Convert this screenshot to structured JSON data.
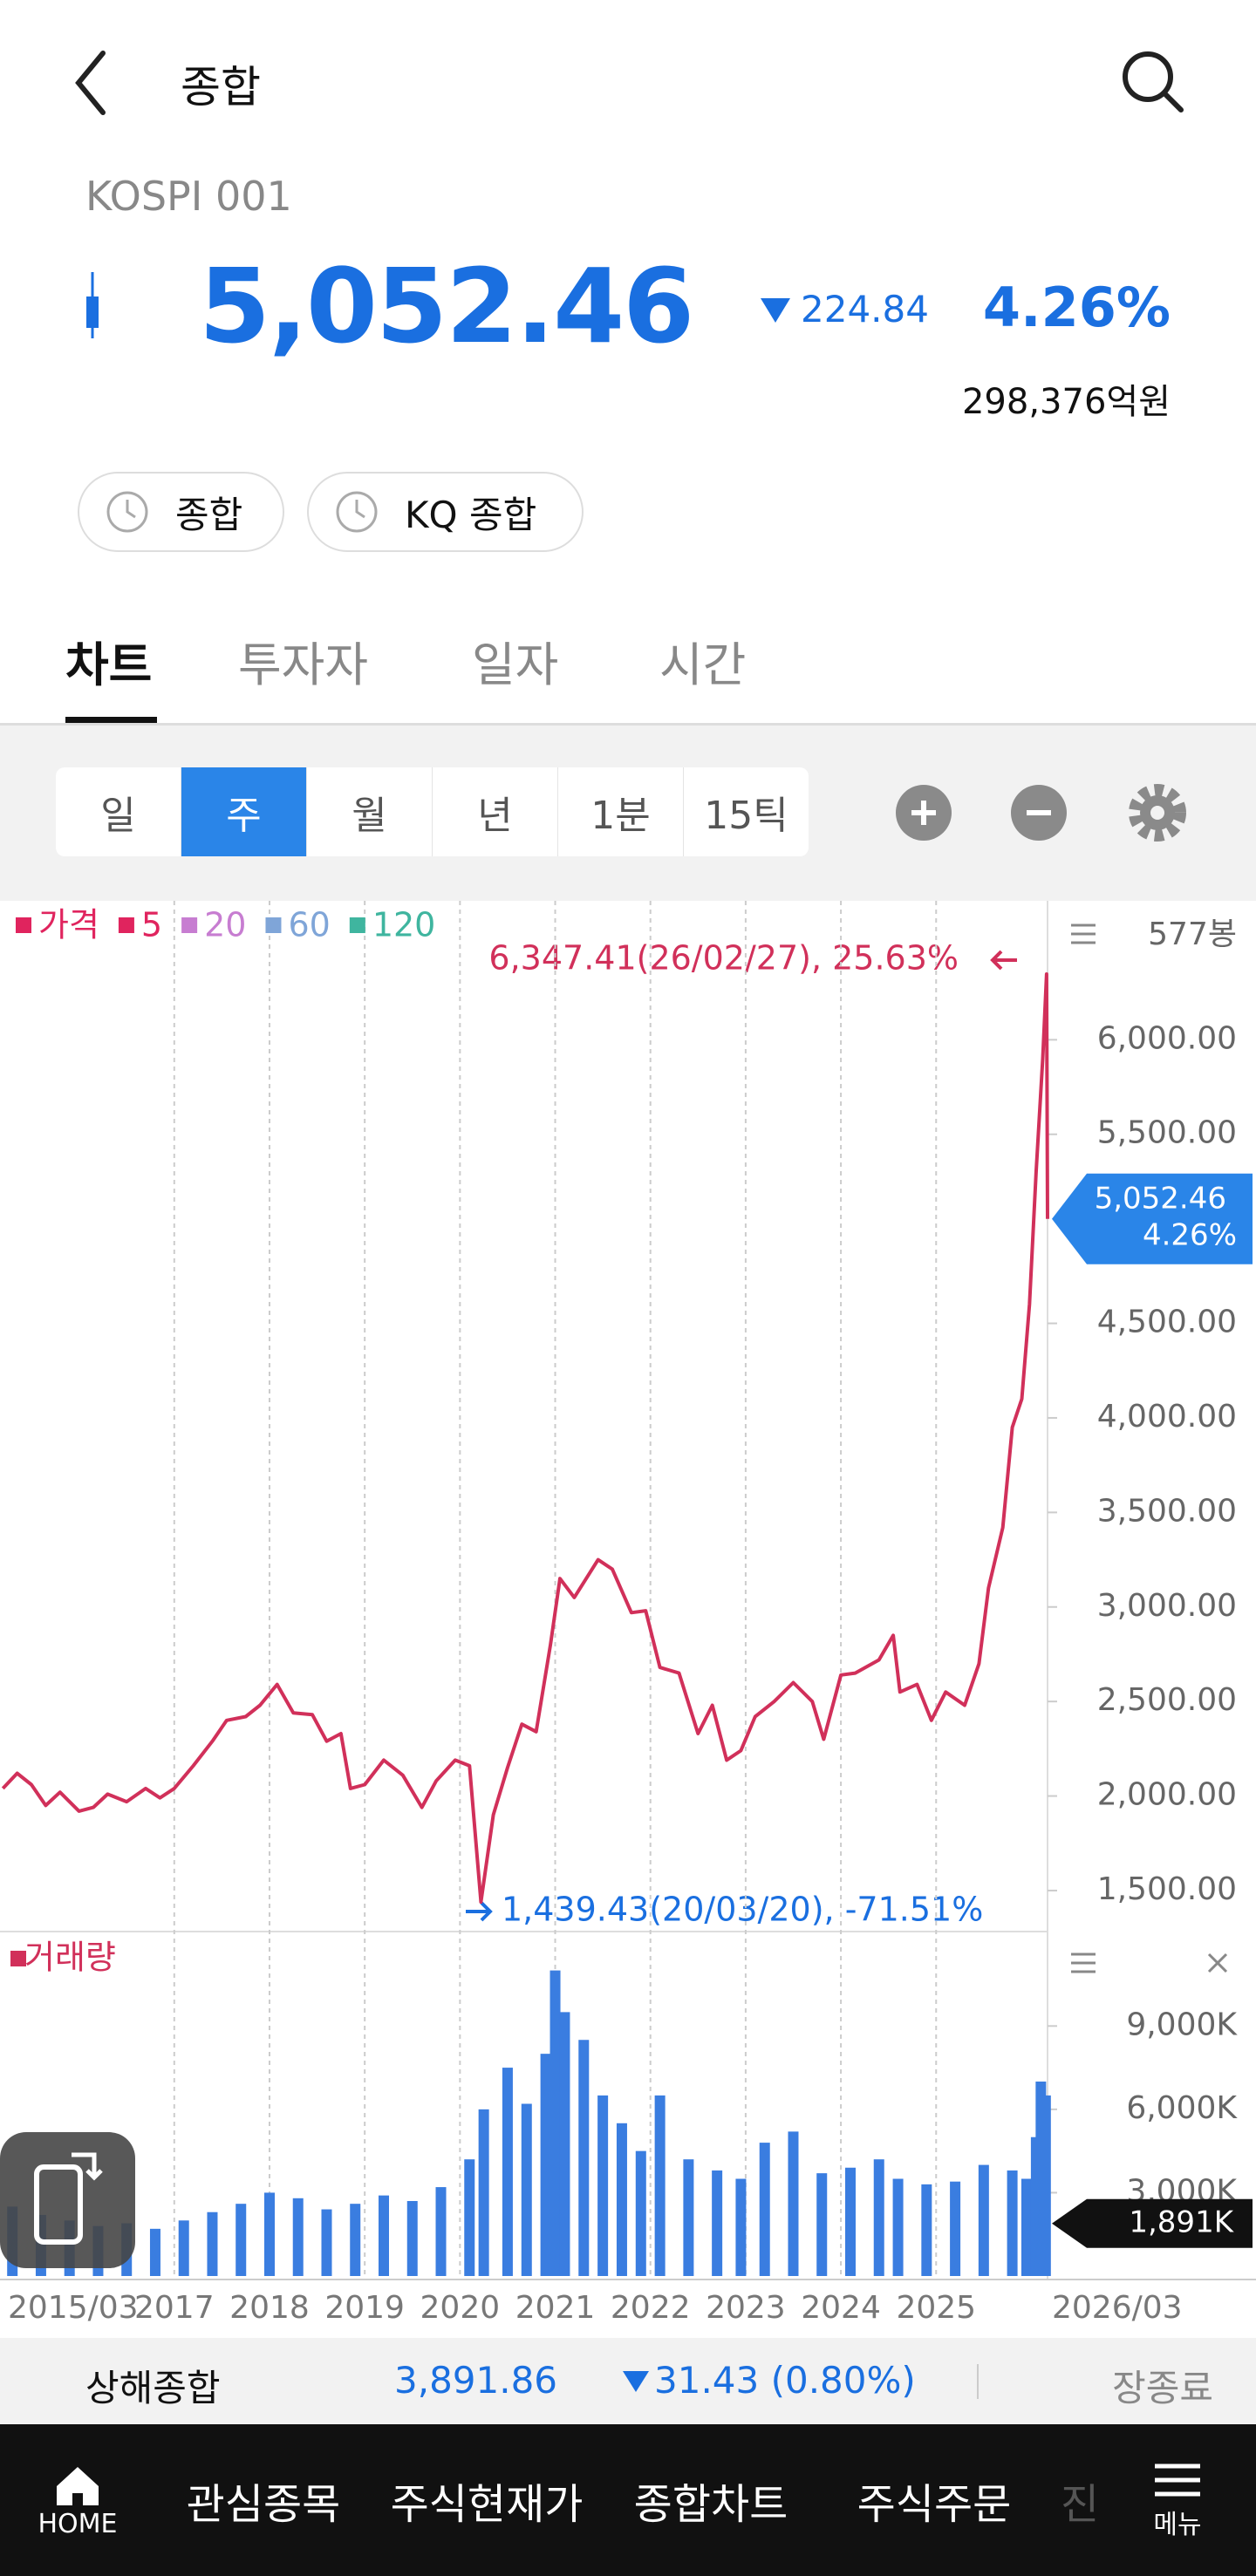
{
  "header": {
    "title": "종합"
  },
  "quote": {
    "code": "KOSPI 001",
    "price": "5,052.46",
    "change": "224.84",
    "change_pct": "4.26%",
    "turnover": "298,376억원"
  },
  "chips": [
    "종합",
    "KQ 종합"
  ],
  "tabs": [
    "차트",
    "투자자",
    "일자",
    "시간"
  ],
  "period_buttons": [
    "일",
    "주",
    "월",
    "년",
    "1분",
    "15틱"
  ],
  "chart_data": {
    "type": "line",
    "legend": [
      {
        "name": "가격",
        "color": "#e0245e"
      },
      {
        "name": "5",
        "color": "#e0245e"
      },
      {
        "name": "20",
        "color": "#c77dd1"
      },
      {
        "name": "60",
        "color": "#7fa5d8"
      },
      {
        "name": "120",
        "color": "#3fb59f"
      }
    ],
    "bar_count": "577봉",
    "max_annotation": "6,347.41(26/02/27), 25.63%",
    "min_annotation": "1,439.43(20/03/20), -71.51%",
    "current": {
      "value": 5052.46,
      "label": "5,052.46",
      "pct": "4.26%"
    },
    "xlim": [
      2015.17,
      2026.17
    ],
    "xticks": [
      {
        "value": 2015.17,
        "label": "2015/03"
      },
      2017,
      2018,
      2019,
      2020,
      2021,
      2022,
      2023,
      2024,
      2025,
      {
        "value": 2026.17,
        "label": "2026/03"
      }
    ],
    "ylim": [
      1283,
      6735
    ],
    "yticks": [
      {
        "value": 1500,
        "label": "1,500.00"
      },
      {
        "value": 2000,
        "label": "2,000.00"
      },
      {
        "value": 2500,
        "label": "2,500.00"
      },
      {
        "value": 3000,
        "label": "3,000.00"
      },
      {
        "value": 3500,
        "label": "3,500.00"
      },
      {
        "value": 4000,
        "label": "4,000.00"
      },
      {
        "value": 4500,
        "label": "4,500.00"
      },
      {
        "value": 5500,
        "label": "5,500.00"
      },
      {
        "value": 6000,
        "label": "6,000.00"
      }
    ],
    "price": {
      "color": "#d1305a",
      "x": [
        2015.2,
        2015.35,
        2015.5,
        2015.65,
        2015.8,
        2016.0,
        2016.15,
        2016.3,
        2016.5,
        2016.7,
        2016.85,
        2017.0,
        2017.2,
        2017.4,
        2017.55,
        2017.75,
        2017.9,
        2018.08,
        2018.25,
        2018.45,
        2018.6,
        2018.75,
        2018.85,
        2019.0,
        2019.2,
        2019.4,
        2019.6,
        2019.75,
        2019.95,
        2020.1,
        2020.22,
        2020.35,
        2020.5,
        2020.65,
        2020.8,
        2020.95,
        2021.05,
        2021.2,
        2021.45,
        2021.6,
        2021.8,
        2021.95,
        2022.1,
        2022.3,
        2022.5,
        2022.65,
        2022.8,
        2022.95,
        2023.1,
        2023.3,
        2023.5,
        2023.7,
        2023.82,
        2024.0,
        2024.15,
        2024.4,
        2024.55,
        2024.62,
        2024.8,
        2024.95,
        2025.1,
        2025.3,
        2025.45,
        2025.55,
        2025.7,
        2025.8,
        2025.9,
        2025.98,
        2026.05,
        2026.12,
        2026.16,
        2026.17
      ],
      "values": [
        2040,
        2120,
        2060,
        1950,
        2020,
        1920,
        1940,
        2010,
        1970,
        2040,
        1990,
        2040,
        2160,
        2290,
        2400,
        2420,
        2480,
        2590,
        2440,
        2430,
        2290,
        2330,
        2040,
        2060,
        2190,
        2110,
        1940,
        2080,
        2190,
        2160,
        1439.43,
        1900,
        2150,
        2380,
        2340,
        2800,
        3150,
        3050,
        3250,
        3200,
        2970,
        2980,
        2680,
        2650,
        2330,
        2480,
        2190,
        2240,
        2420,
        2500,
        2600,
        2500,
        2300,
        2640,
        2650,
        2720,
        2850,
        2550,
        2590,
        2400,
        2550,
        2480,
        2700,
        3100,
        3420,
        3950,
        4100,
        4600,
        5300,
        5900,
        6347.41,
        5052.46
      ]
    },
    "volume": {
      "title": "거래량",
      "color": "#3a7de0",
      "ylim": [
        0,
        12400
      ],
      "yticks": [
        {
          "value": 3000,
          "label": "3,000K"
        },
        {
          "value": 6000,
          "label": "6,000K"
        },
        {
          "value": 9000,
          "label": "9,000K"
        }
      ],
      "current": {
        "value": 1891,
        "label": "1,891K"
      },
      "x": [
        2015.3,
        2015.6,
        2015.9,
        2016.2,
        2016.5,
        2016.8,
        2017.1,
        2017.4,
        2017.7,
        2018.0,
        2018.3,
        2018.6,
        2018.9,
        2019.2,
        2019.5,
        2019.8,
        2020.1,
        2020.25,
        2020.5,
        2020.7,
        2020.9,
        2021.0,
        2021.1,
        2021.3,
        2021.5,
        2021.7,
        2021.9,
        2022.1,
        2022.4,
        2022.7,
        2022.95,
        2023.2,
        2023.5,
        2023.8,
        2024.1,
        2024.4,
        2024.6,
        2024.9,
        2025.2,
        2025.5,
        2025.8,
        2025.95,
        2026.05,
        2026.1,
        2026.15
      ],
      "values": [
        2500,
        2200,
        2000,
        1800,
        1900,
        1700,
        2000,
        2300,
        2600,
        3000,
        2800,
        2400,
        2600,
        2900,
        2700,
        3200,
        4200,
        6000,
        7500,
        6200,
        8000,
        11000,
        9500,
        8500,
        6500,
        5500,
        4500,
        6500,
        4200,
        3800,
        3500,
        4800,
        5200,
        3700,
        3900,
        4200,
        3500,
        3300,
        3400,
        4000,
        3800,
        3500,
        5000,
        7000,
        6500
      ]
    }
  },
  "ticker": {
    "name": "상해종합",
    "price": "3,891.86",
    "change": "31.43 (0.80%)",
    "status": "장종료"
  },
  "nav": [
    "HOME",
    "관심종목",
    "주식현재가",
    "종합차트",
    "주식주문",
    "진",
    "메뉴"
  ]
}
